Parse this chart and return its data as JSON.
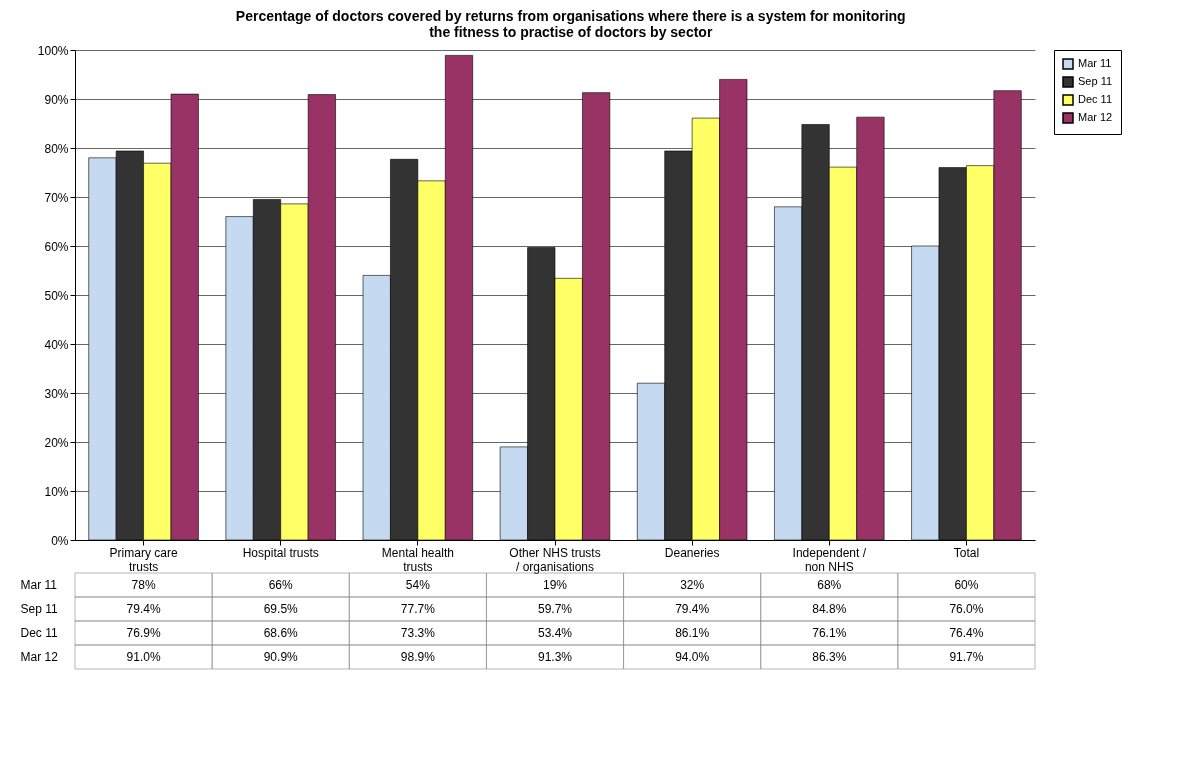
{
  "chart_data": {
    "type": "bar",
    "title": "Percentage of doctors covered by returns from organisations where there is a system for monitoring the fitness to practise of doctors by sector",
    "categories": [
      "Primary care trusts",
      "Hospital trusts",
      "Mental health trusts",
      "Other NHS trusts / organisations",
      "Deaneries",
      "Independent / non NHS",
      "Total"
    ],
    "series": [
      {
        "name": "Mar 11",
        "color": "#c5d9f1",
        "values": [
          78,
          66,
          54,
          19,
          32,
          68,
          60
        ],
        "value_labels": [
          "78%",
          "66%",
          "54%",
          "19%",
          "32%",
          "68%",
          "60%"
        ]
      },
      {
        "name": "Sep 11",
        "color": "#333333",
        "values": [
          79.4,
          69.5,
          77.7,
          59.7,
          79.4,
          84.8,
          76.0
        ],
        "value_labels": [
          "79.4%",
          "69.5%",
          "77.7%",
          "59.7%",
          "79.4%",
          "84.8%",
          "76.0%"
        ]
      },
      {
        "name": "Dec 11",
        "color": "#ffff66",
        "values": [
          76.9,
          68.6,
          73.3,
          53.4,
          86.1,
          76.1,
          76.4
        ],
        "value_labels": [
          "76.9%",
          "68.6%",
          "73.3%",
          "53.4%",
          "86.1%",
          "76.1%",
          "76.4%"
        ]
      },
      {
        "name": "Mar 12",
        "color": "#993366",
        "values": [
          91.0,
          90.9,
          98.9,
          91.3,
          94.0,
          86.3,
          91.7
        ],
        "value_labels": [
          "91.0%",
          "90.9%",
          "98.9%",
          "91.3%",
          "94.0%",
          "86.3%",
          "91.7%"
        ]
      }
    ],
    "ylim": [
      0,
      100
    ],
    "yticks": [
      {
        "value": 0,
        "label": "0%"
      },
      {
        "value": 10,
        "label": "10%"
      },
      {
        "value": 20,
        "label": "20%"
      },
      {
        "value": 30,
        "label": "30%"
      },
      {
        "value": 40,
        "label": "40%"
      },
      {
        "value": 50,
        "label": "50%"
      },
      {
        "value": 60,
        "label": "60%"
      },
      {
        "value": 70,
        "label": "70%"
      },
      {
        "value": 80,
        "label": "80%"
      },
      {
        "value": 90,
        "label": "90%"
      },
      {
        "value": 100,
        "label": "100%"
      }
    ],
    "grid": "y",
    "legend": "right"
  }
}
